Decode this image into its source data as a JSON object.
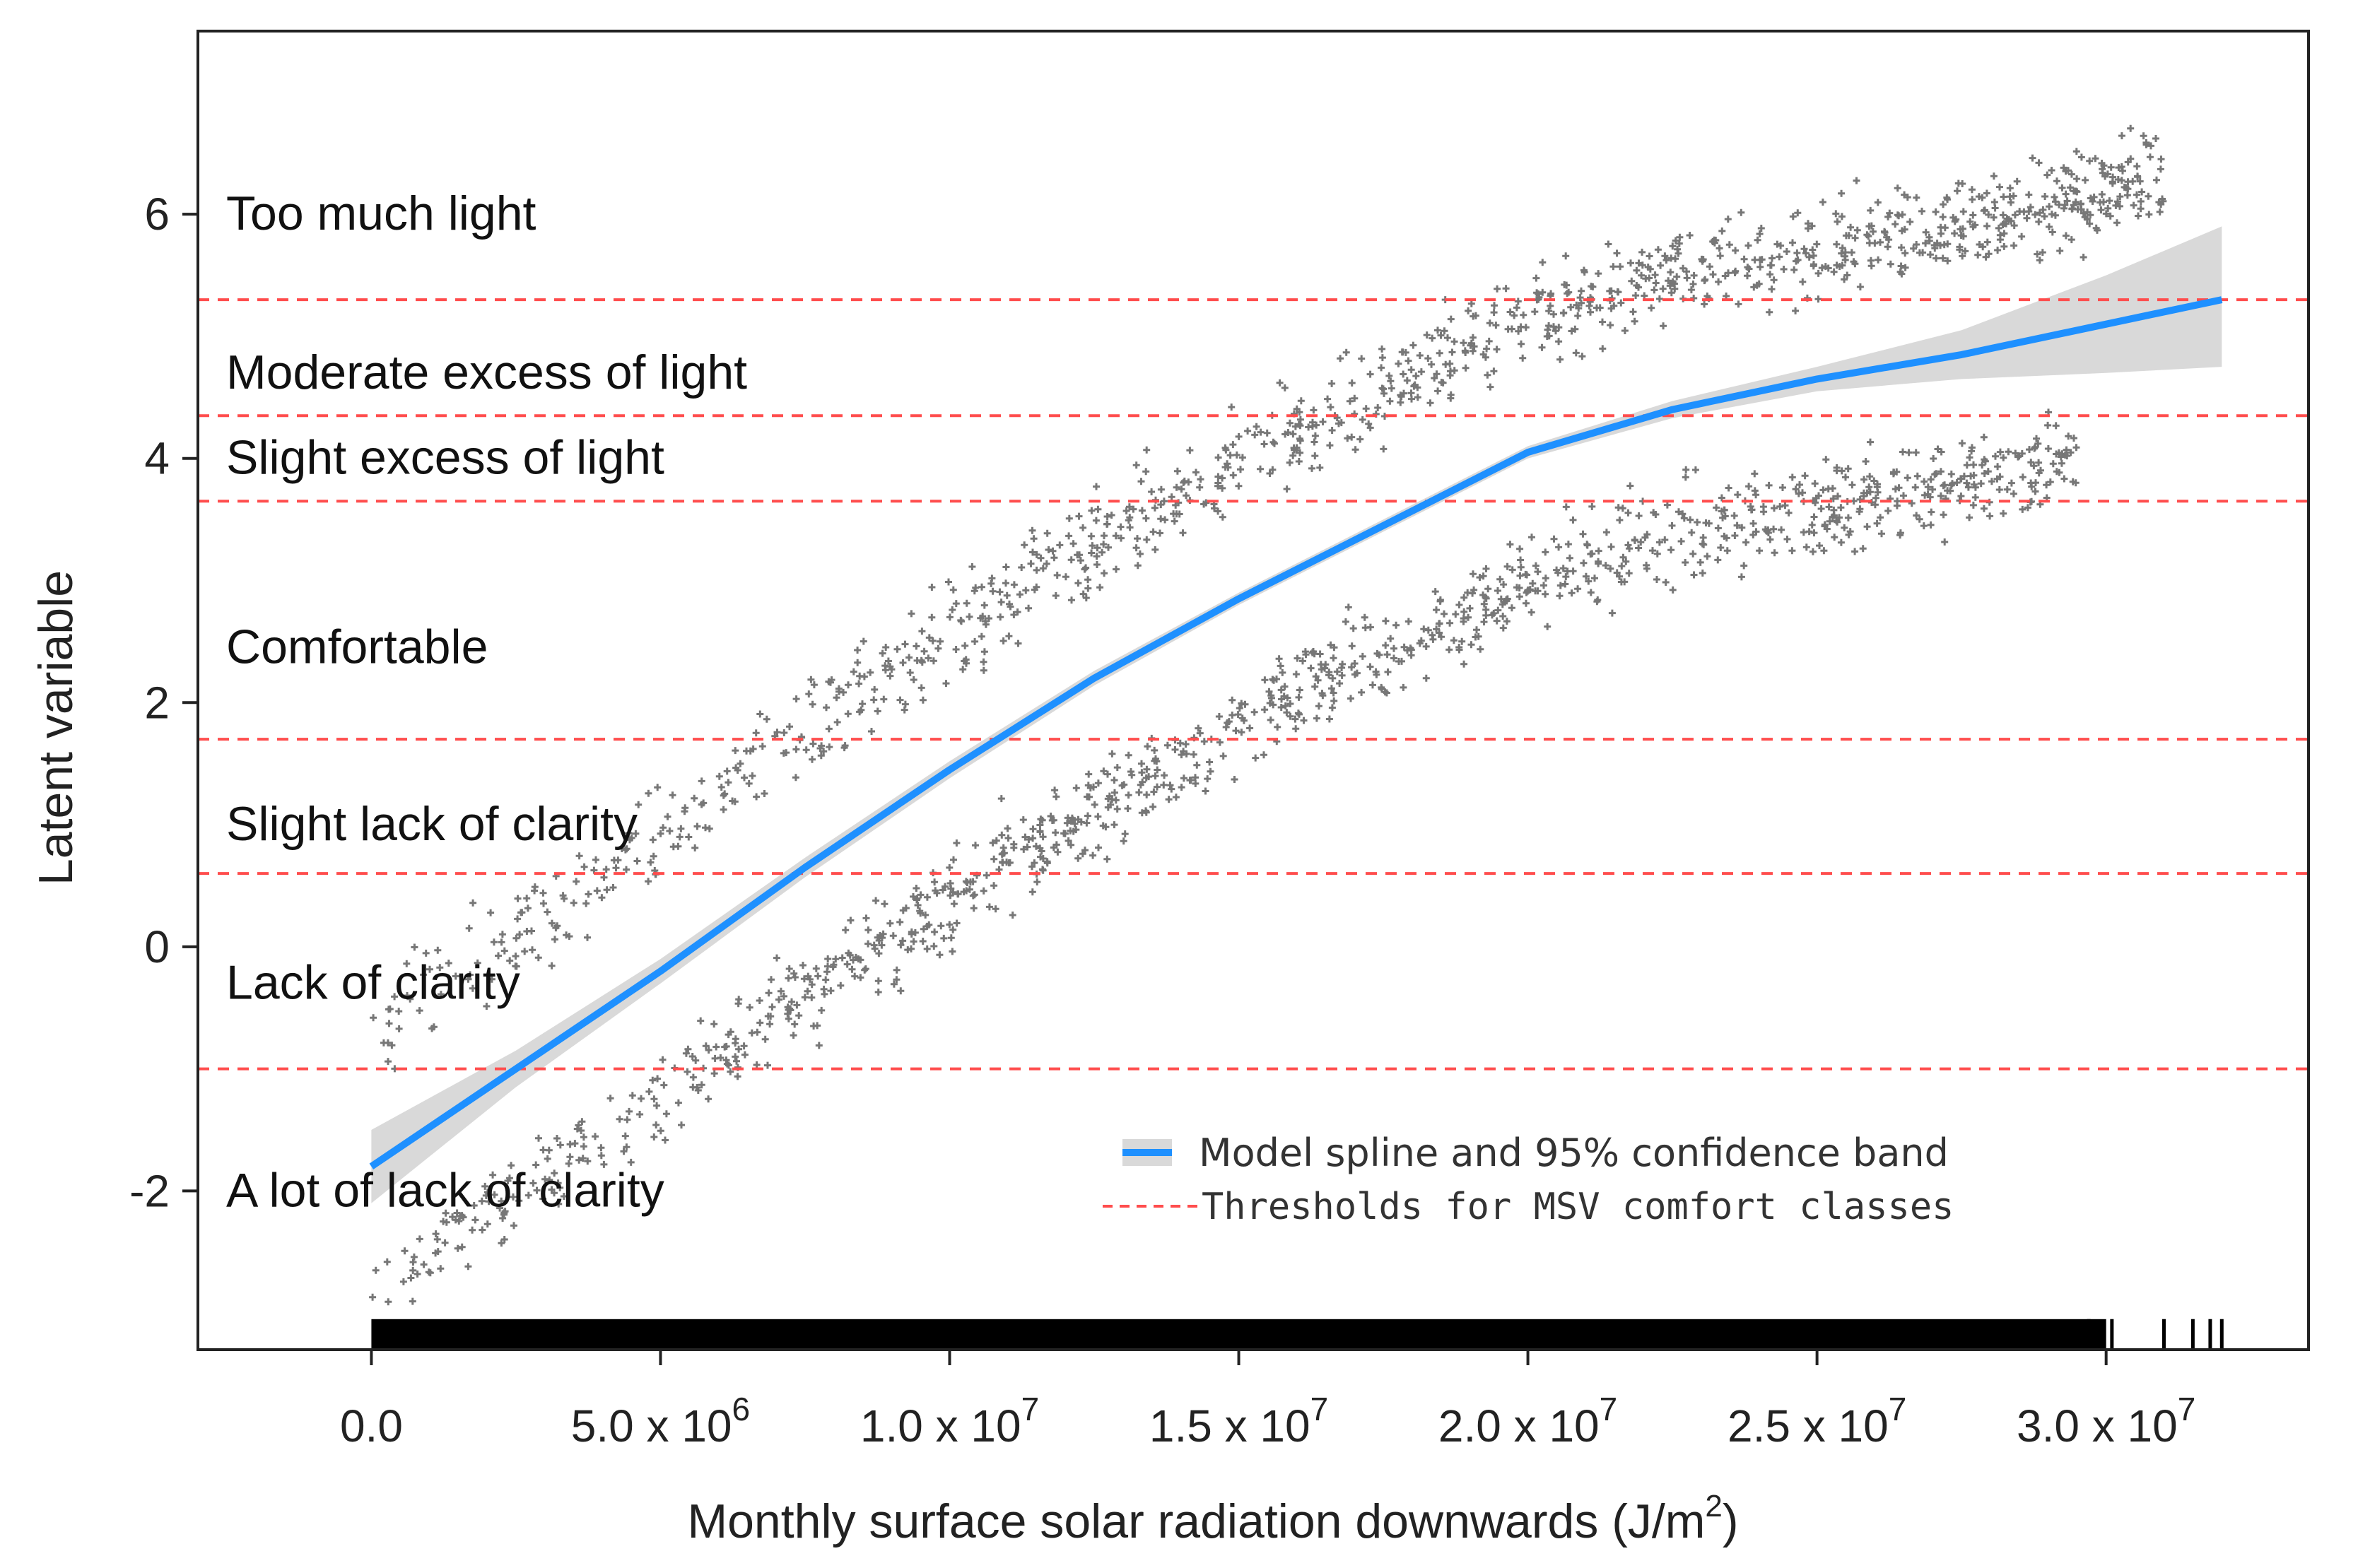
{
  "chart_data": {
    "type": "scatter",
    "title": "",
    "xlabel": "Monthly surface solar radiation downwards (J/m",
    "xlabel_sup": "2",
    "xlabel_end": ")",
    "ylabel": "Latent variable",
    "xlim": [
      -3000000,
      33500000
    ],
    "ylim": [
      -3.3,
      7.5
    ],
    "x_ticks": [
      {
        "value": 0,
        "mantissa": "0.0",
        "exp": ""
      },
      {
        "value": 5000000,
        "mantissa": "5.0 x 10",
        "exp": "6"
      },
      {
        "value": 10000000,
        "mantissa": "1.0 x 10",
        "exp": "7"
      },
      {
        "value": 15000000,
        "mantissa": "1.5 x 10",
        "exp": "7"
      },
      {
        "value": 20000000,
        "mantissa": "2.0 x 10",
        "exp": "7"
      },
      {
        "value": 25000000,
        "mantissa": "2.5 x 10",
        "exp": "7"
      },
      {
        "value": 30000000,
        "mantissa": "3.0 x 10",
        "exp": "7"
      }
    ],
    "y_ticks": [
      {
        "value": -2,
        "label": "-2"
      },
      {
        "value": 0,
        "label": "0"
      },
      {
        "value": 2,
        "label": "2"
      },
      {
        "value": 4,
        "label": "4"
      },
      {
        "value": 6,
        "label": "6"
      }
    ],
    "thresholds": [
      5.3,
      4.35,
      3.65,
      1.7,
      0.6,
      -1.0
    ],
    "threshold_color": "#ff4d4d",
    "point_color": "#777777",
    "spline_color": "#1e90ff",
    "band_color": "#d9d9d9",
    "comfort_classes": [
      {
        "label": "Too much light",
        "y": 6.0
      },
      {
        "label": "Moderate excess of light",
        "y": 4.7
      },
      {
        "label": "Slight excess of light",
        "y": 4.0
      },
      {
        "label": "Comfortable",
        "y": 2.45
      },
      {
        "label": "Slight lack of clarity",
        "y": 1.0
      },
      {
        "label": "Lack of clarity",
        "y": -0.3
      },
      {
        "label": "A lot of lack of clarity",
        "y": -2.0
      }
    ],
    "spline": {
      "x": [
        0,
        2500000,
        5000000,
        7500000,
        10000000,
        12500000,
        15000000,
        17500000,
        20000000,
        22500000,
        25000000,
        27500000,
        30000000,
        32000000
      ],
      "y": [
        -1.8,
        -1.0,
        -0.2,
        0.65,
        1.45,
        2.2,
        2.85,
        3.45,
        4.05,
        4.4,
        4.65,
        4.85,
        5.1,
        5.3
      ],
      "lower": [
        -2.1,
        -1.15,
        -0.3,
        0.57,
        1.38,
        2.14,
        2.8,
        3.4,
        4.0,
        4.33,
        4.55,
        4.65,
        4.7,
        4.75
      ],
      "upper": [
        -1.5,
        -0.85,
        -0.1,
        0.73,
        1.52,
        2.26,
        2.9,
        3.5,
        4.1,
        4.47,
        4.75,
        5.05,
        5.5,
        5.9
      ]
    },
    "clusters": [
      {
        "name": "upper-group",
        "x_range": [
          0,
          31000000
        ],
        "offset": 1.1,
        "spread": 0.7,
        "count": 1100
      },
      {
        "name": "lower-group",
        "x_range": [
          0,
          29500000
        ],
        "offset": -1.05,
        "spread": 0.65,
        "count": 1100
      }
    ],
    "legend": {
      "position": "bottom-right",
      "items": [
        {
          "label": "Model spline and 95% confidence band",
          "style": "band"
        },
        {
          "label": "Thresholds for MSV comfort classes",
          "style": "dashed"
        }
      ]
    }
  }
}
